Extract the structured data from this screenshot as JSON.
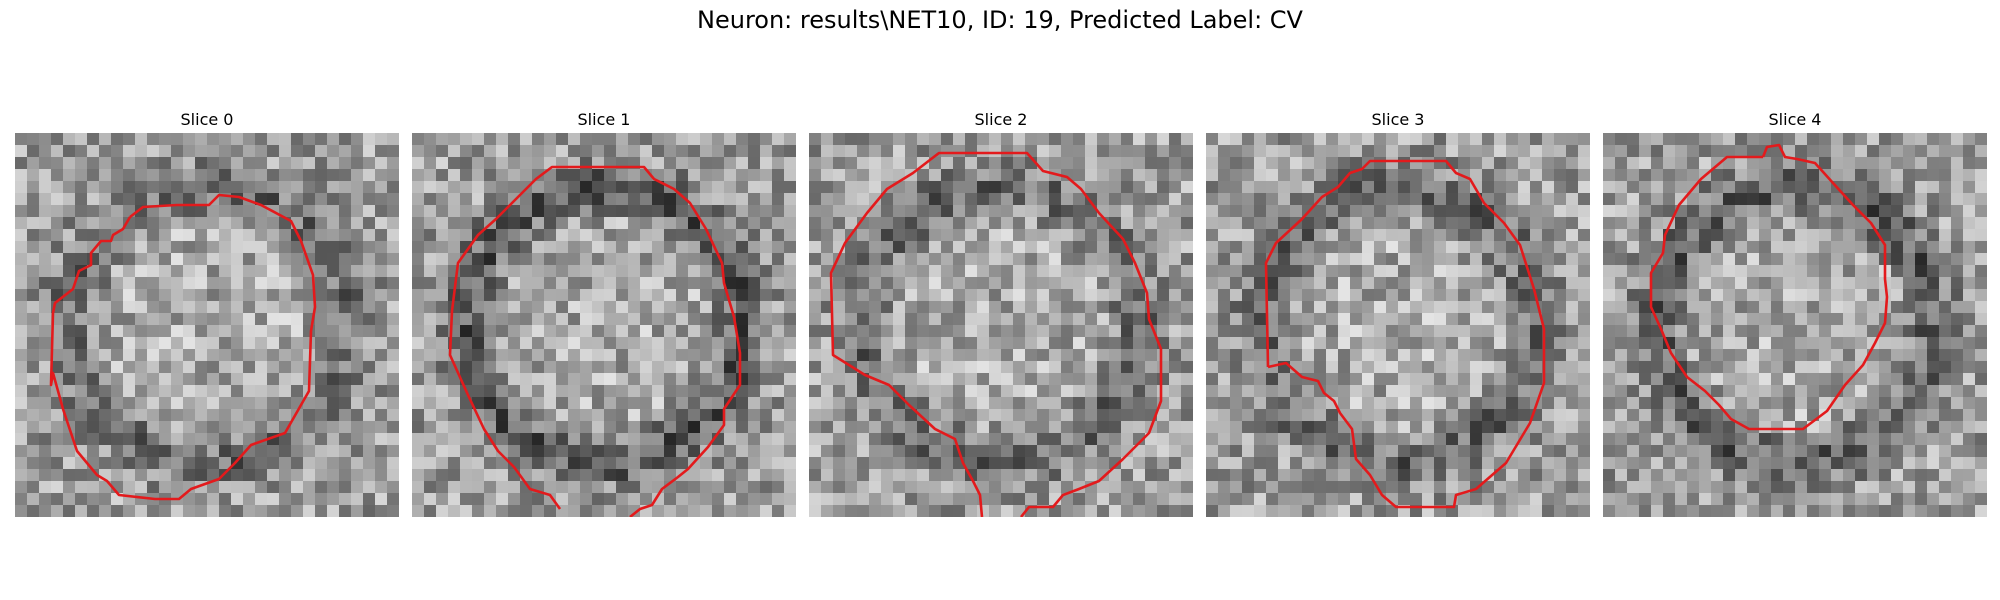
{
  "title": "Neuron: results\\NET10, ID: 19, Predicted Label: CV",
  "contour_color": "#e31a1c",
  "panels": [
    {
      "label": "Slice 0",
      "seed": 11,
      "ring_dark": 0.55
    },
    {
      "label": "Slice 1",
      "seed": 23,
      "ring_dark": 0.75
    },
    {
      "label": "Slice 2",
      "seed": 37,
      "ring_dark": 0.55
    },
    {
      "label": "Slice 3",
      "seed": 41,
      "ring_dark": 0.6
    },
    {
      "label": "Slice 4",
      "seed": 53,
      "ring_dark": 0.7
    }
  ]
}
